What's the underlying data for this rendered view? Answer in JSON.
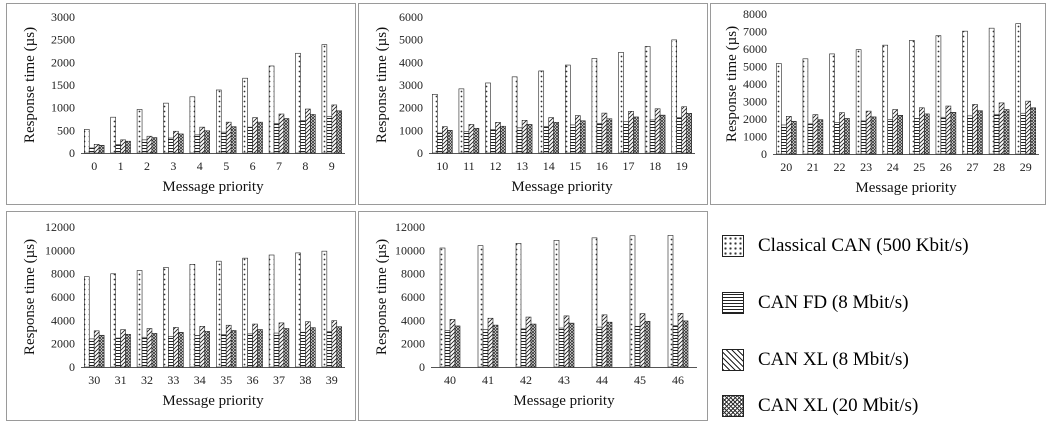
{
  "series_names": [
    "Classical CAN (500 Kbit/s)",
    "CAN FD (8 Mbit/s)",
    "CAN XL (8 Mbit/s)",
    "CAN XL (20 Mbit/s)"
  ],
  "chart_data": [
    {
      "type": "bar",
      "xlabel": "Message priority",
      "ylabel": "Response time (µs)",
      "ylim": [
        0,
        3000
      ],
      "yticks": [
        0,
        500,
        1000,
        1500,
        2000,
        2500,
        3000
      ],
      "categories": [
        "0",
        "1",
        "2",
        "3",
        "4",
        "5",
        "6",
        "7",
        "8",
        "9"
      ],
      "series": [
        {
          "name": "Classical CAN (500 Kbit/s)",
          "values": [
            520,
            790,
            960,
            1100,
            1240,
            1390,
            1650,
            1920,
            2200,
            2390
          ]
        },
        {
          "name": "CAN FD (8 Mbit/s)",
          "values": [
            110,
            190,
            290,
            330,
            400,
            460,
            570,
            650,
            720,
            810
          ]
        },
        {
          "name": "CAN XL (8 Mbit/s)",
          "values": [
            190,
            290,
            370,
            480,
            570,
            680,
            780,
            860,
            970,
            1060
          ]
        },
        {
          "name": "CAN XL (20 Mbit/s)",
          "values": [
            170,
            260,
            340,
            420,
            490,
            580,
            680,
            760,
            850,
            930
          ]
        }
      ]
    },
    {
      "type": "bar",
      "xlabel": "Message priority",
      "ylabel": "Response time (µs)",
      "ylim": [
        0,
        6000
      ],
      "yticks": [
        0,
        1000,
        2000,
        3000,
        4000,
        5000,
        6000
      ],
      "categories": [
        "10",
        "11",
        "12",
        "13",
        "14",
        "15",
        "16",
        "17",
        "18",
        "19"
      ],
      "series": [
        {
          "name": "Classical CAN (500 Kbit/s)",
          "values": [
            2590,
            2830,
            3090,
            3360,
            3620,
            3880,
            4170,
            4440,
            4700,
            4990
          ]
        },
        {
          "name": "CAN FD (8 Mbit/s)",
          "values": [
            880,
            940,
            1040,
            1110,
            1170,
            1240,
            1300,
            1380,
            1460,
            1560
          ]
        },
        {
          "name": "CAN XL (8 Mbit/s)",
          "values": [
            1160,
            1260,
            1350,
            1440,
            1560,
            1650,
            1760,
            1840,
            1950,
            2040
          ]
        },
        {
          "name": "CAN XL (20 Mbit/s)",
          "values": [
            1000,
            1090,
            1180,
            1260,
            1350,
            1420,
            1510,
            1590,
            1670,
            1750
          ]
        }
      ]
    },
    {
      "type": "bar",
      "xlabel": "Message priority",
      "ylabel": "Response time (µs)",
      "ylim": [
        0,
        8000
      ],
      "yticks": [
        0,
        1000,
        2000,
        3000,
        4000,
        5000,
        6000,
        7000,
        8000
      ],
      "categories": [
        "20",
        "21",
        "22",
        "23",
        "24",
        "25",
        "26",
        "27",
        "28",
        "29"
      ],
      "series": [
        {
          "name": "Classical CAN (500 Kbit/s)",
          "values": [
            5170,
            5440,
            5720,
            5960,
            6220,
            6490,
            6760,
            7020,
            7190,
            7450
          ]
        },
        {
          "name": "CAN FD (8 Mbit/s)",
          "values": [
            1660,
            1720,
            1800,
            1890,
            1960,
            2030,
            2100,
            2180,
            2270,
            2330
          ]
        },
        {
          "name": "CAN XL (8 Mbit/s)",
          "values": [
            2150,
            2250,
            2360,
            2450,
            2540,
            2640,
            2740,
            2830,
            2920,
            3020
          ]
        },
        {
          "name": "CAN XL (20 Mbit/s)",
          "values": [
            1870,
            1960,
            2030,
            2120,
            2210,
            2290,
            2380,
            2470,
            2540,
            2640
          ]
        }
      ]
    },
    {
      "type": "bar",
      "xlabel": "Message priority",
      "ylabel": "Response time (µs)",
      "ylim": [
        0,
        12000
      ],
      "yticks": [
        0,
        2000,
        4000,
        6000,
        8000,
        10000,
        12000
      ],
      "categories": [
        "30",
        "31",
        "32",
        "33",
        "34",
        "35",
        "36",
        "37",
        "38",
        "39"
      ],
      "series": [
        {
          "name": "Classical CAN (500 Kbit/s)",
          "values": [
            7740,
            7990,
            8270,
            8530,
            8800,
            9070,
            9330,
            9600,
            9780,
            9930
          ]
        },
        {
          "name": "CAN FD (8 Mbit/s)",
          "values": [
            2410,
            2480,
            2550,
            2620,
            2700,
            2770,
            2840,
            2910,
            2980,
            3050
          ]
        },
        {
          "name": "CAN XL (8 Mbit/s)",
          "values": [
            3100,
            3200,
            3300,
            3390,
            3480,
            3580,
            3680,
            3780,
            3880,
            3970
          ]
        },
        {
          "name": "CAN XL (20 Mbit/s)",
          "values": [
            2720,
            2800,
            2880,
            2970,
            3050,
            3130,
            3210,
            3300,
            3370,
            3450
          ]
        }
      ]
    },
    {
      "type": "bar",
      "xlabel": "Message priority",
      "ylabel": "Response time (µs)",
      "ylim": [
        0,
        12000
      ],
      "yticks": [
        0,
        2000,
        4000,
        6000,
        8000,
        10000,
        12000
      ],
      "categories": [
        "40",
        "41",
        "42",
        "43",
        "44",
        "45",
        "46"
      ],
      "series": [
        {
          "name": "Classical CAN (500 Kbit/s)",
          "values": [
            10200,
            10400,
            10600,
            10860,
            11070,
            11250,
            11280
          ]
        },
        {
          "name": "CAN FD (8 Mbit/s)",
          "values": [
            3130,
            3200,
            3270,
            3340,
            3420,
            3490,
            3560
          ]
        },
        {
          "name": "CAN XL (8 Mbit/s)",
          "values": [
            4080,
            4180,
            4280,
            4380,
            4470,
            4570,
            4600
          ]
        },
        {
          "name": "CAN XL (20 Mbit/s)",
          "values": [
            3520,
            3590,
            3680,
            3760,
            3840,
            3920,
            3950
          ]
        }
      ]
    }
  ]
}
